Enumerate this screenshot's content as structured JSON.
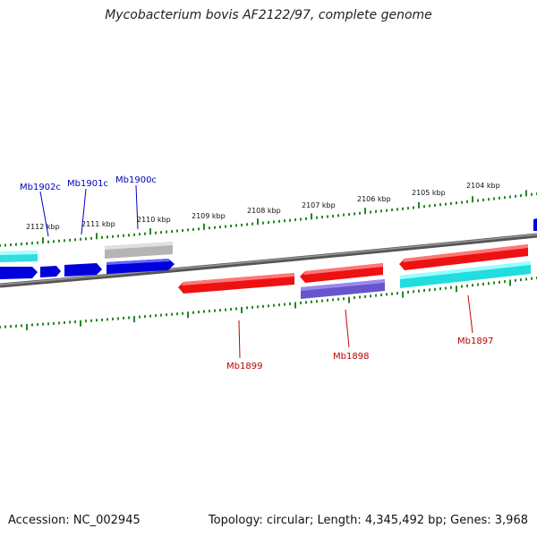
{
  "title": "Mycobacterium bovis AF2122/97, complete genome",
  "footer": {
    "accession": "Accession: NC_002945",
    "summary": "Topology: circular; Length: 4,345,492 bp; Genes: 3,968"
  },
  "colors": {
    "forward_cds": "#0000ee",
    "reverse_cds": "#ee0000",
    "rna_forward": "#00dddd",
    "rna_reverse": "#00dddd",
    "pseudo": "#aaaaaa",
    "other_reverse": "#6655cc",
    "tick": "#228822",
    "backbone": "#777777"
  },
  "ruler_labels": [
    "2112 kbp",
    "2111 kbp",
    "2110 kbp",
    "2109 kbp",
    "2108 kbp",
    "2107 kbp",
    "2106 kbp",
    "2105 kbp",
    "2104 kbp"
  ],
  "gene_labels_top": [
    "Mb1902c",
    "Mb1901c",
    "Mb1900c"
  ],
  "gene_labels_bottom": [
    "Mb1899",
    "Mb1898",
    "Mb1897"
  ]
}
